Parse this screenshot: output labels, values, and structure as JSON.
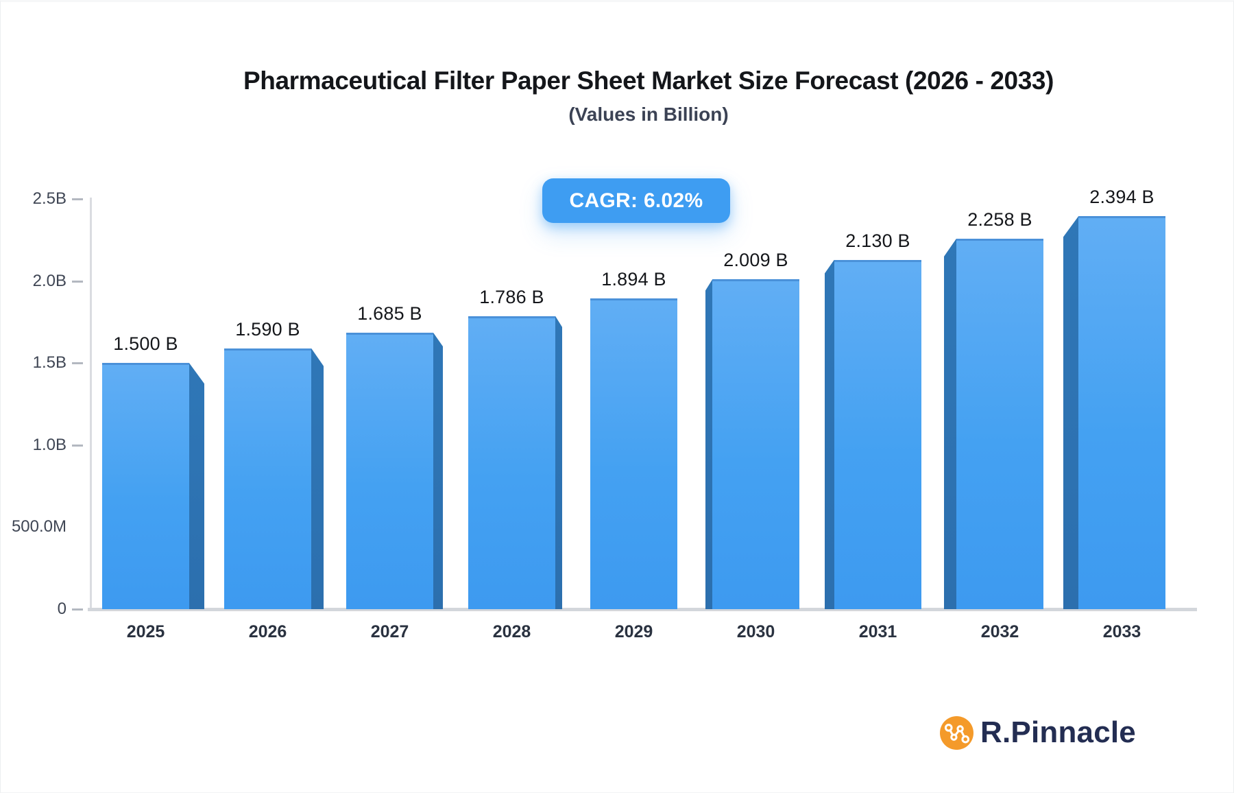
{
  "title": "Pharmaceutical Filter Paper Sheet Market Size Forecast (2026 - 2033)",
  "subtitle": "(Values in Billion)",
  "badge": {
    "label": "CAGR: 6.02%"
  },
  "chart_data": {
    "type": "bar",
    "title": "Pharmaceutical Filter Paper Sheet Market Size Forecast (2026 - 2033)",
    "subtitle": "(Values in Billion)",
    "categories": [
      "2025",
      "2026",
      "2027",
      "2028",
      "2029",
      "2030",
      "2031",
      "2032",
      "2033"
    ],
    "values": [
      1.5,
      1.59,
      1.685,
      1.786,
      1.894,
      2.009,
      2.13,
      2.258,
      2.394
    ],
    "value_labels": [
      "1.500 B",
      "1.590 B",
      "1.685 B",
      "1.786 B",
      "1.894 B",
      "2.009 B",
      "2.130 B",
      "2.258 B",
      "2.394 B"
    ],
    "unit": "Billion",
    "cagr": "6.02%",
    "xlabel": "",
    "ylabel": "",
    "ylim": [
      0,
      2.5
    ],
    "grid": false,
    "legend": "none",
    "y_ticks": [
      {
        "label": "2.5B",
        "value": 2.5,
        "dash": true
      },
      {
        "label": "2.0B",
        "value": 2.0,
        "dash": true
      },
      {
        "label": "1.5B",
        "value": 1.5,
        "dash": true
      },
      {
        "label": "1.0B",
        "value": 1.0,
        "dash": true
      },
      {
        "label": "500.0M",
        "value": 0.5,
        "dash": false
      },
      {
        "label": "0",
        "value": 0.0,
        "dash": true
      }
    ],
    "bar_style": "3d-beveled",
    "colors": {
      "bar_face_top": "#61aef4",
      "bar_face_bottom": "#3d9af0",
      "bar_top_edge": "#4a91d9",
      "bar_side": "#2e74b4",
      "axis": "#d3d6db",
      "tick_text": "#3f4654",
      "year_text": "#2a3240",
      "value_text": "#15171b",
      "badge_bg": "#3e9df2",
      "badge_text": "#ffffff"
    }
  },
  "logo": {
    "text": "R.Pinnacle",
    "icon": "line-chart-nodes-icon",
    "circle_color": "#f49a2a",
    "text_color": "#232d52"
  }
}
